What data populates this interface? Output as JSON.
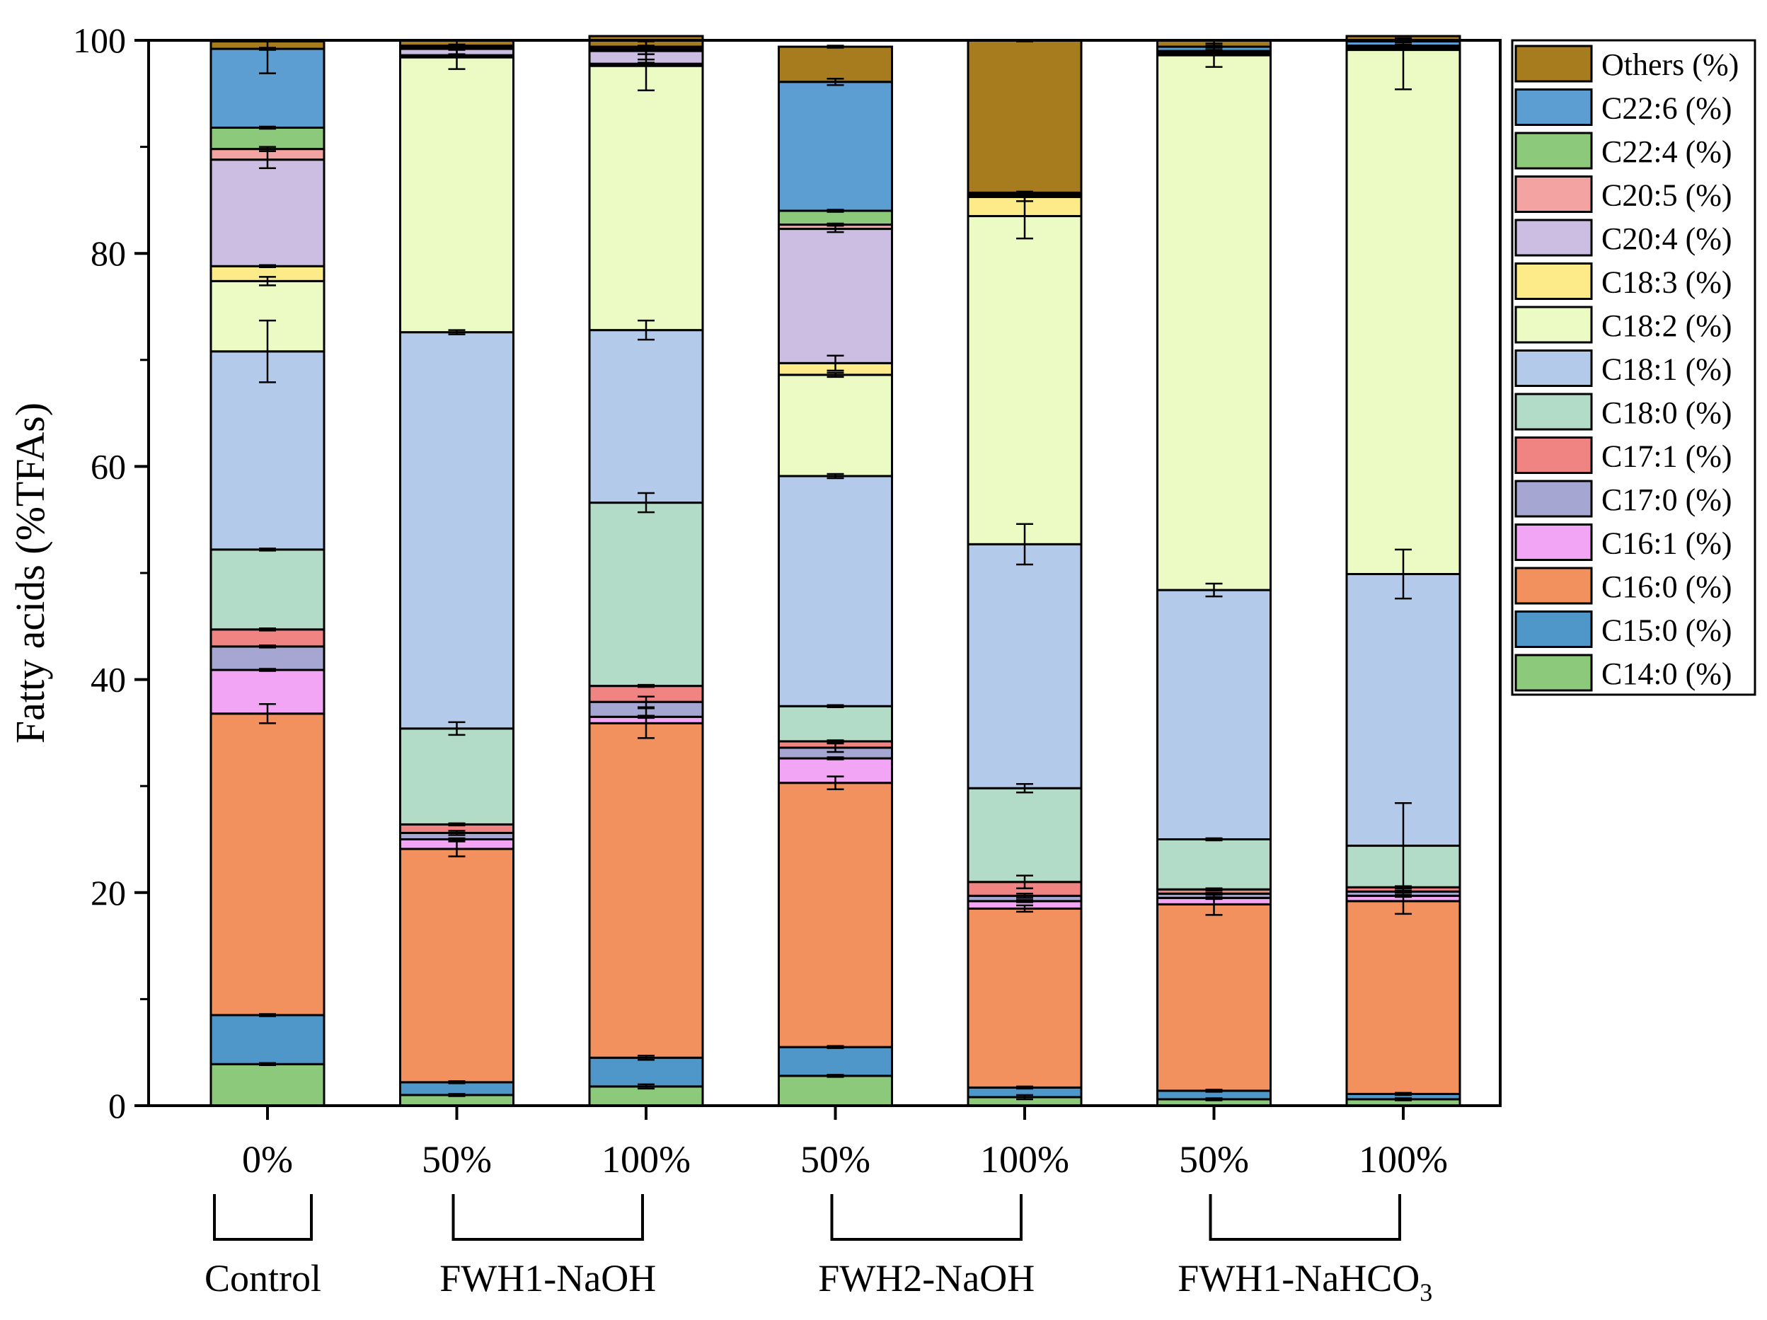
{
  "chart_data": {
    "type": "bar",
    "stacked": true,
    "ylabel": "Fatty acids (%TFAs)",
    "xlabel": "",
    "ylim": [
      0,
      100
    ],
    "yticks": [
      0,
      20,
      40,
      60,
      80,
      100
    ],
    "grid": false,
    "legend_position": "right",
    "categories": [
      "0%",
      "50%",
      "100%",
      "50%",
      "100%",
      "50%",
      "100%"
    ],
    "groups": [
      {
        "label": "Control",
        "start": 0,
        "end": 0
      },
      {
        "label": "FWH1-NaOH",
        "start": 1,
        "end": 2
      },
      {
        "label": "FWH2-NaOH",
        "start": 3,
        "end": 4
      },
      {
        "label": "FWH1-NaHCO",
        "subscript": "3",
        "start": 5,
        "end": 6
      }
    ],
    "series": [
      {
        "name": "C14:0 (%)",
        "color": "#8cc97a",
        "values": [
          3.9,
          1.0,
          1.8,
          2.8,
          0.8,
          0.6,
          0.6
        ],
        "errors": [
          0.1,
          0.1,
          0.2,
          0.1,
          0.2,
          0.1,
          0.1
        ]
      },
      {
        "name": "C15:0 (%)",
        "color": "#4f97c9",
        "values": [
          4.6,
          1.2,
          2.7,
          2.7,
          0.9,
          0.8,
          0.5
        ],
        "errors": [
          0.1,
          0.1,
          0.2,
          0.1,
          0.1,
          0.1,
          0.1
        ]
      },
      {
        "name": "C16:0 (%)",
        "color": "#f2915e",
        "values": [
          28.3,
          21.9,
          31.4,
          24.8,
          16.8,
          17.5,
          18.1
        ],
        "errors": [
          0.9,
          0.7,
          1.4,
          0.6,
          0.3,
          1.0,
          1.2
        ]
      },
      {
        "name": "C16:1 (%)",
        "color": "#f2a5f5",
        "values": [
          4.1,
          0.9,
          0.6,
          2.3,
          0.7,
          0.6,
          0.5
        ],
        "errors": [
          0.1,
          0.1,
          0.1,
          0.1,
          0.1,
          0.1,
          0.1
        ]
      },
      {
        "name": "C17:0 (%)",
        "color": "#a6a6d2",
        "values": [
          2.2,
          0.6,
          1.4,
          1.0,
          0.5,
          0.4,
          0.4
        ],
        "errors": [
          0.1,
          0.2,
          0.5,
          0.4,
          0.2,
          0.1,
          0.1
        ]
      },
      {
        "name": "C17:1 (%)",
        "color": "#f08482",
        "values": [
          1.6,
          0.8,
          1.5,
          0.6,
          1.3,
          0.4,
          0.4
        ],
        "errors": [
          0.1,
          0.1,
          0.1,
          0.1,
          0.6,
          0.1,
          0.1
        ]
      },
      {
        "name": "C18:0 (%)",
        "color": "#b3dcc8",
        "values": [
          7.5,
          9.0,
          17.2,
          3.3,
          8.8,
          4.7,
          3.9
        ],
        "errors": [
          0.1,
          0.6,
          0.9,
          0.1,
          0.4,
          0.1,
          4.0
        ]
      },
      {
        "name": "C18:1 (%)",
        "color": "#b4caea",
        "values": [
          18.6,
          37.2,
          16.2,
          21.6,
          22.9,
          23.4,
          25.5
        ],
        "errors": [
          2.9,
          0.2,
          0.9,
          0.2,
          1.9,
          0.6,
          2.3
        ]
      },
      {
        "name": "C18:2 (%)",
        "color": "#ecfac4",
        "values": [
          6.6,
          25.8,
          24.8,
          9.5,
          30.8,
          50.2,
          49.2
        ],
        "errors": [
          0.4,
          1.1,
          2.3,
          0.2,
          2.1,
          1.1,
          3.7
        ]
      },
      {
        "name": "C18:3 (%)",
        "color": "#fdea88",
        "values": [
          1.4,
          0.2,
          0.2,
          1.1,
          1.8,
          0.1,
          0.1
        ],
        "errors": [
          0.1,
          0.1,
          0.1,
          0.7,
          0.4,
          0.1,
          0.1
        ]
      },
      {
        "name": "C20:4 (%)",
        "color": "#ccbde2",
        "values": [
          10.0,
          0.6,
          1.2,
          12.6,
          0.1,
          0.1,
          0.1
        ],
        "errors": [
          0.8,
          0.1,
          0.3,
          0.3,
          0.1,
          0.1,
          0.1
        ]
      },
      {
        "name": "C20:5 (%)",
        "color": "#f4a3a3",
        "values": [
          1.0,
          0.1,
          0.1,
          0.4,
          0.1,
          0.1,
          0.1
        ],
        "errors": [
          0.2,
          0.1,
          0.1,
          0.1,
          0.1,
          0.1,
          0.1
        ]
      },
      {
        "name": "C22:4 (%)",
        "color": "#8cc97a",
        "values": [
          2.0,
          0.1,
          0.1,
          1.3,
          0.1,
          0.1,
          0.1
        ],
        "errors": [
          0.1,
          0.1,
          0.1,
          0.1,
          0.1,
          0.1,
          0.1
        ]
      },
      {
        "name": "C22:6 (%)",
        "color": "#5c9ed2",
        "values": [
          7.4,
          0.1,
          0.2,
          12.1,
          0.1,
          0.4,
          0.4
        ],
        "errors": [
          0.1,
          0.1,
          0.1,
          0.3,
          0.1,
          0.1,
          0.1
        ]
      },
      {
        "name": "Others (%)",
        "color": "#a67c1e",
        "values": [
          0.7,
          0.5,
          1.0,
          3.3,
          14.3,
          0.6,
          0.5
        ],
        "errors": [
          3.0,
          1.5,
          2.2,
          0.1,
          0.1,
          1.4,
          0.2
        ]
      }
    ]
  }
}
